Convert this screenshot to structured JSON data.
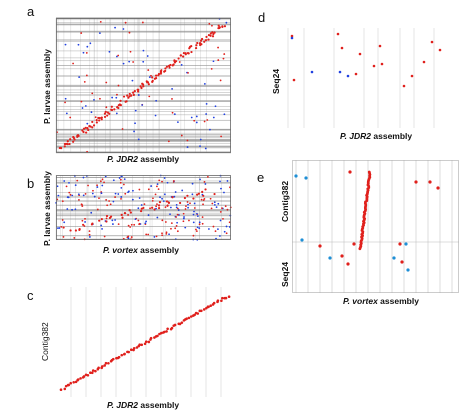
{
  "panels": {
    "a": {
      "letter": "a",
      "xlabel_species": "P. JDR2",
      "xlabel_rest": " assembly",
      "ylabel": "P. larvae assembly"
    },
    "b": {
      "letter": "b",
      "xlabel_species": "P. vortex",
      "xlabel_rest": " assembly",
      "ylabel": "P. larvae assembly"
    },
    "c": {
      "letter": "c",
      "xlabel_species": "P. JDR2",
      "xlabel_rest": " assembly",
      "ylabel": "Contig382"
    },
    "d": {
      "letter": "d",
      "xlabel_species": "P. JDR2",
      "xlabel_rest": " assembly",
      "ylabel": "Seq24"
    },
    "e": {
      "letter": "e",
      "xlabel_species": "P. vortex",
      "xlabel_rest": " assembly",
      "ylabel_top": "Contig382",
      "ylabel_bottom": "Seq24"
    }
  },
  "colors": {
    "forward": "#e0201c",
    "reverse": "#2040e0",
    "reverse_e": "#1e8fd6",
    "grid": "#8a8a8a",
    "frame": "#666666"
  }
}
